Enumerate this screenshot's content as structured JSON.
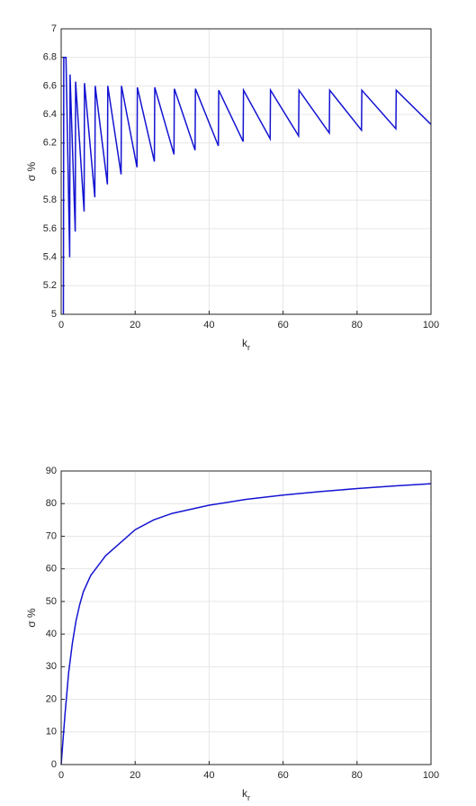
{
  "chart_data": [
    {
      "type": "line",
      "ylabel": "σ %",
      "xlabel": {
        "text": "k",
        "subscript": "r"
      },
      "color": "#1414d2",
      "grid": true,
      "x": [
        0.6,
        0.7,
        1.3,
        2.3,
        2.4,
        3.8,
        3.9,
        6.2,
        6.3,
        9.1,
        9.2,
        12.5,
        12.6,
        16.2,
        16.3,
        20.5,
        20.6,
        25.2,
        25.3,
        30.5,
        30.6,
        36.2,
        36.3,
        42.5,
        42.6,
        49.2,
        49.3,
        56.5,
        56.6,
        64.2,
        64.3,
        72.5,
        72.6,
        81.2,
        81.3,
        90.5,
        90.6,
        100
      ],
      "values": [
        5.0,
        6.8,
        6.8,
        5.4,
        6.68,
        5.58,
        6.63,
        5.72,
        6.62,
        5.82,
        6.6,
        5.91,
        6.6,
        5.98,
        6.6,
        6.03,
        6.59,
        6.07,
        6.59,
        6.12,
        6.58,
        6.15,
        6.58,
        6.18,
        6.57,
        6.21,
        6.57,
        6.23,
        6.57,
        6.25,
        6.57,
        6.27,
        6.57,
        6.29,
        6.57,
        6.3,
        6.57,
        6.33
      ],
      "xlim": [
        0,
        100
      ],
      "xticks": [
        0,
        20,
        40,
        60,
        80,
        100
      ],
      "ylim": [
        5,
        7
      ],
      "yticks": [
        5,
        5.2,
        5.4,
        5.6,
        5.8,
        6,
        6.2,
        6.4,
        6.6,
        6.8,
        7
      ]
    },
    {
      "type": "line",
      "ylabel": "σ %",
      "xlabel": {
        "text": "k",
        "subscript": "r"
      },
      "color": "#1414d2",
      "grid": true,
      "x": [
        0,
        1,
        2,
        3,
        4,
        5,
        6,
        8,
        10,
        12,
        15,
        20,
        25,
        30,
        40,
        50,
        60,
        70,
        80,
        90,
        100
      ],
      "values": [
        0,
        15,
        28,
        37,
        44,
        49,
        53,
        58,
        61,
        64,
        67,
        72,
        75,
        77,
        79.5,
        81.3,
        82.6,
        83.7,
        84.6,
        85.4,
        86.1
      ],
      "xlim": [
        0,
        100
      ],
      "xticks": [
        0,
        20,
        40,
        60,
        80,
        100
      ],
      "ylim": [
        0,
        90
      ],
      "yticks": [
        0,
        10,
        20,
        30,
        40,
        50,
        60,
        70,
        80,
        90
      ]
    }
  ]
}
